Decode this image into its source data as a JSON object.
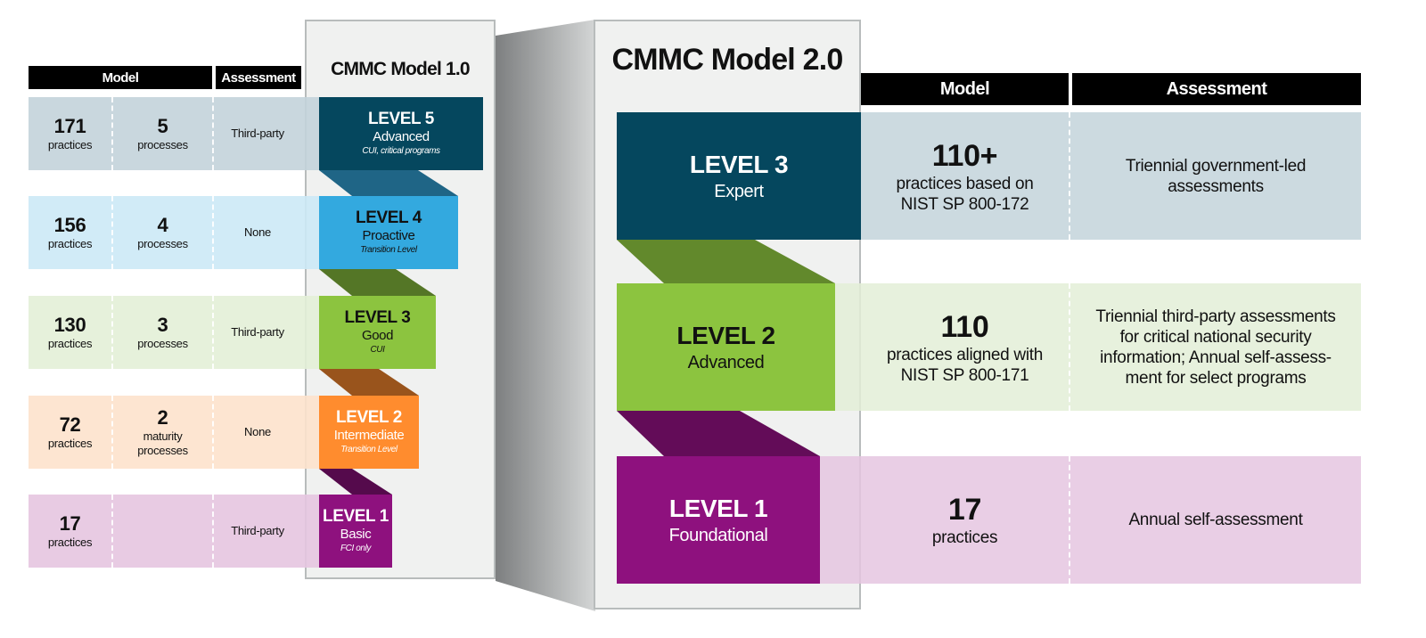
{
  "model1": {
    "title": "CMMC Model 1.0",
    "headers": {
      "model": "Model",
      "assessment": "Assessment"
    },
    "rows": [
      {
        "practices": "171",
        "practices_label": "practices",
        "processes": "5",
        "processes_label": "processes",
        "assessment": "Third-party",
        "color": "#c3d3da"
      },
      {
        "practices": "156",
        "practices_label": "practices",
        "processes": "4",
        "processes_label": "processes",
        "assessment": "None",
        "color": "#cce9f6"
      },
      {
        "practices": "130",
        "practices_label": "practices",
        "processes": "3",
        "processes_label": "processes",
        "assessment": "Third-party",
        "color": "#e3efd7"
      },
      {
        "practices": "72",
        "practices_label": "practices",
        "processes": "2",
        "processes_label": "maturity processes",
        "assessment": "None",
        "color": "#fde2cc"
      },
      {
        "practices": "17",
        "practices_label": "practices",
        "processes": "",
        "processes_label": "",
        "assessment": "Third-party",
        "color": "#e5c5e0"
      }
    ],
    "levels": [
      {
        "level": "LEVEL 5",
        "name": "Advanced",
        "desc": "CUI, critical programs",
        "color": "#05475e",
        "text": "#ffffff"
      },
      {
        "level": "LEVEL 4",
        "name": "Proactive",
        "desc": "Transition Level",
        "color": "#33a9df",
        "text": "#111111"
      },
      {
        "level": "LEVEL 3",
        "name": "Good",
        "desc": "CUI",
        "color": "#8cc43f",
        "text": "#111111"
      },
      {
        "level": "LEVEL 2",
        "name": "Intermediate",
        "desc": "Transition Level",
        "color": "#ff8c2e",
        "text": "#ffffff"
      },
      {
        "level": "LEVEL 1",
        "name": "Basic",
        "desc": "FCI only",
        "color": "#8e117e",
        "text": "#ffffff"
      }
    ]
  },
  "model2": {
    "title": "CMMC Model 2.0",
    "headers": {
      "model": "Model",
      "assessment": "Assessment"
    },
    "rows": [
      {
        "level": "LEVEL 3",
        "name": "Expert",
        "count": "110+",
        "count_label": "practices based on NIST SP 800-172",
        "assessment": "Triennial government-led assessments",
        "color": "#05475e",
        "row_color": "#c3d3da"
      },
      {
        "level": "LEVEL 2",
        "name": "Advanced",
        "count": "110",
        "count_label": "practices aligned with NIST SP 800-171",
        "assessment": "Triennial third-party assessments for critical national security information; Annual self-assess-ment for select programs",
        "color": "#8cc43f",
        "row_color": "#e3efd7"
      },
      {
        "level": "LEVEL 1",
        "name": "Foundational",
        "count": "17",
        "count_label": "practices",
        "assessment": "Annual self-assessment",
        "color": "#8e117e",
        "row_color": "#e5c5e0"
      }
    ]
  }
}
